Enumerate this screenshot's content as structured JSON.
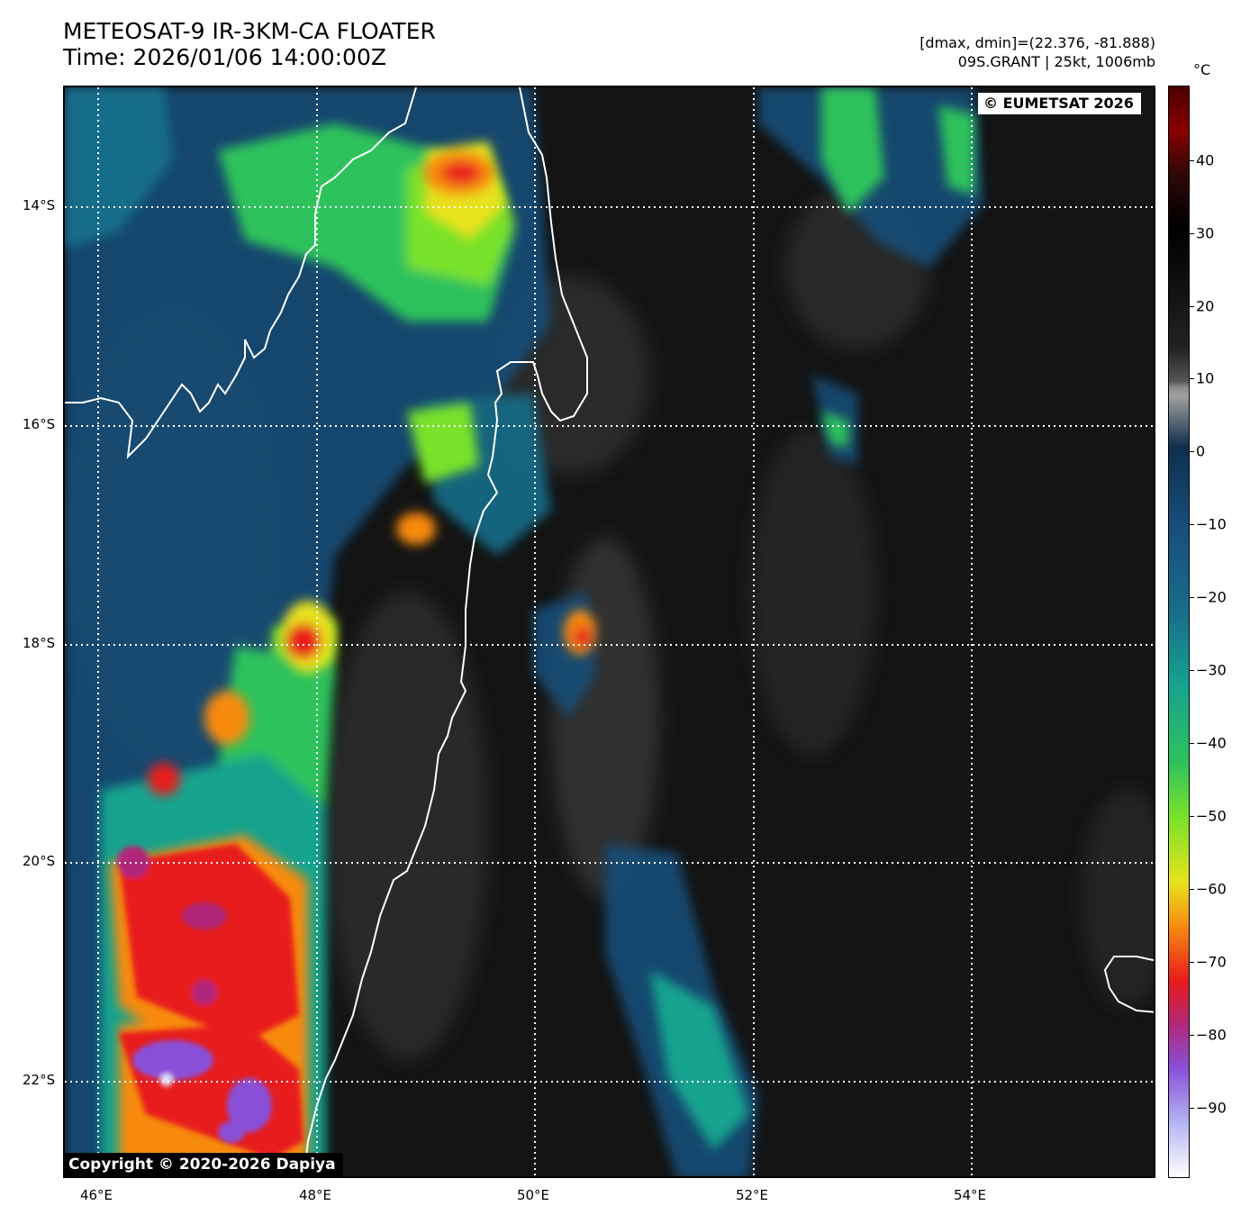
{
  "header": {
    "title_line1": "METEOSAT-9 IR-3KM-CA FLOATER",
    "title_line2": "Time: 2026/01/06 14:00:00Z",
    "meta_line1": "[dmax, dmin]=(22.376, -81.888)",
    "meta_line2": "09S.GRANT | 25kt, 1006mb"
  },
  "map": {
    "credit": "© EUMETSAT 2026",
    "copyright": "Copyright © 2020-2026 Dapiya",
    "lat_labels": [
      "14°S",
      "16°S",
      "18°S",
      "20°S",
      "22°S"
    ],
    "lon_labels": [
      "46°E",
      "48°E",
      "50°E",
      "52°E",
      "54°E"
    ]
  },
  "colorbar": {
    "unit": "°C",
    "ticks": [
      "40",
      "30",
      "20",
      "10",
      "0",
      "−10",
      "−20",
      "−30",
      "−40",
      "−50",
      "−60",
      "−70",
      "−80",
      "−90"
    ]
  },
  "colors": {
    "cold_cloud_top": "#8a4fd8",
    "very_cold": "#e81b1b",
    "cold": "#f78a10",
    "mid": "#79e22a",
    "warm_cloud": "#184d78",
    "clear_sea": "#141414",
    "coastline": "#ffffff"
  }
}
